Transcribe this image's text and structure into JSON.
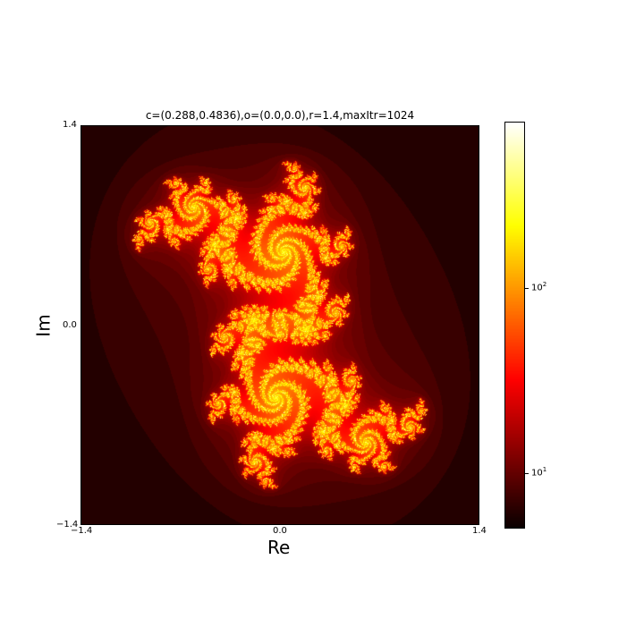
{
  "chart_data": {
    "type": "heatmap",
    "title": "c=(0.288,0.4836),o=(0.0,0.0),r=1.4,maxItr=1024",
    "xlabel": "Re",
    "ylabel": "Im",
    "xlim": [
      -1.4,
      1.4
    ],
    "ylim": [
      -1.4,
      1.4
    ],
    "x_ticks": [
      "−1.4",
      "0.0",
      "1.4"
    ],
    "y_ticks": [
      "1.4",
      "0.0",
      "−1.4"
    ],
    "c_real": 0.288,
    "c_imag": 0.4836,
    "center": [
      0.0,
      0.0
    ],
    "radius": 1.4,
    "max_iter": 1024,
    "colormap": "hot",
    "colorbar": {
      "scale": "log",
      "range": [
        5,
        700
      ],
      "ticks": [
        {
          "value": 10,
          "base": "10",
          "exp": "1"
        },
        {
          "value": 100,
          "base": "10",
          "exp": "2"
        }
      ]
    }
  }
}
